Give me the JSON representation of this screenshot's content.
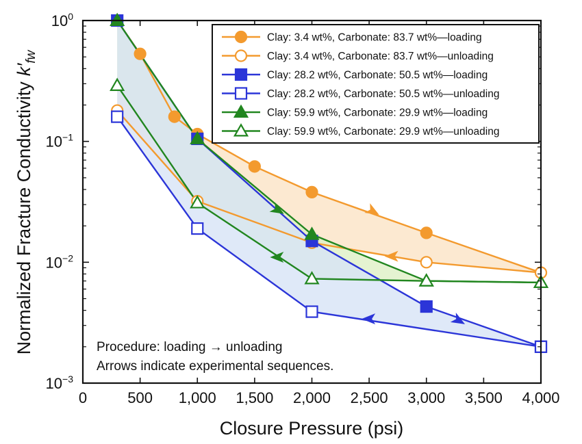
{
  "chart_data": {
    "type": "line",
    "xlabel": "Closure Pressure (psi)",
    "ylabel": "Normalized Fracture Conductivity",
    "ylabel_symbol": "k",
    "ylabel_prime": "′",
    "ylabel_sub": "fw",
    "xlim": [
      0,
      4000
    ],
    "ylim": [
      0.001,
      1
    ],
    "yscale": "log",
    "grid": false,
    "legend_position": "top-right",
    "x_ticks": [
      0,
      500,
      1000,
      1500,
      2000,
      2500,
      3000,
      3500,
      4000
    ],
    "x_tick_labels": [
      "0",
      "500",
      "1,000",
      "1,500",
      "2,000",
      "2,500",
      "3,000",
      "3,500",
      "4,000"
    ],
    "y_ticks": [
      {
        "value": 1,
        "base": "10",
        "exp": "0"
      },
      {
        "value": 0.1,
        "base": "10",
        "exp": "−1"
      },
      {
        "value": 0.01,
        "base": "10",
        "exp": "−2"
      },
      {
        "value": 0.001,
        "base": "10",
        "exp": "−3"
      }
    ],
    "series": [
      {
        "name": "Clay: 3.4 wt%, Carbonate: 83.7 wt%—loading",
        "color": "#f39a2e",
        "fill_color": "#fbe3c6",
        "marker": "circle",
        "filled": true,
        "x": [
          300,
          500,
          800,
          1000,
          1500,
          2000,
          3000,
          4000
        ],
        "y": [
          1.0,
          0.53,
          0.16,
          0.115,
          0.062,
          0.038,
          0.0175,
          0.0082
        ]
      },
      {
        "name": "Clay: 3.4 wt%, Carbonate: 83.7 wt%—unloading",
        "color": "#f39a2e",
        "fill_color": "#fbe3c6",
        "marker": "circle",
        "filled": false,
        "x": [
          4000,
          3000,
          2000,
          1000,
          300
        ],
        "y": [
          0.0082,
          0.01,
          0.0145,
          0.032,
          0.18
        ]
      },
      {
        "name": "Clay: 28.2 wt%, Carbonate: 50.5 wt%—loading",
        "color": "#2b35d8",
        "fill_color": "#d7e4f6",
        "marker": "square",
        "filled": true,
        "x": [
          300,
          1000,
          2000,
          3000,
          4000
        ],
        "y": [
          1.0,
          0.105,
          0.015,
          0.0043,
          0.002
        ]
      },
      {
        "name": "Clay: 28.2 wt%, Carbonate: 50.5 wt%—unloading",
        "color": "#2b35d8",
        "fill_color": "#d7e4f6",
        "marker": "square",
        "filled": false,
        "x": [
          4000,
          2000,
          1000,
          300
        ],
        "y": [
          0.002,
          0.0039,
          0.019,
          0.16
        ]
      },
      {
        "name": "Clay: 59.9 wt%, Carbonate: 29.9 wt%—loading",
        "color": "#21861f",
        "fill_color": "#dff0c6",
        "marker": "triangle",
        "filled": true,
        "x": [
          300,
          1000,
          2000,
          3000,
          4000
        ],
        "y": [
          1.0,
          0.105,
          0.017,
          0.007,
          0.0068
        ]
      },
      {
        "name": "Clay: 59.9 wt%, Carbonate: 29.9 wt%—unloading",
        "color": "#21861f",
        "fill_color": "#dff0c6",
        "marker": "triangle",
        "filled": false,
        "x": [
          4000,
          3000,
          2000,
          1000,
          300
        ],
        "y": [
          0.0068,
          0.007,
          0.0073,
          0.031,
          0.29
        ]
      }
    ],
    "arrows": [
      {
        "color": "#f39a2e",
        "direction": "down-right",
        "x": 2530,
        "y": 0.0265
      },
      {
        "color": "#f39a2e",
        "direction": "left",
        "x": 2700,
        "y": 0.0112
      },
      {
        "color": "#2b35d8",
        "direction": "down-right",
        "x": 3280,
        "y": 0.0033
      },
      {
        "color": "#2b35d8",
        "direction": "left",
        "x": 2500,
        "y": 0.0034
      },
      {
        "color": "#21861f",
        "direction": "down-right",
        "x": 1700,
        "y": 0.027
      },
      {
        "color": "#21861f",
        "direction": "left",
        "x": 1700,
        "y": 0.011
      }
    ],
    "annotations": [
      "Procedure: loading → unloading",
      "Arrows indicate experimental sequences."
    ]
  }
}
